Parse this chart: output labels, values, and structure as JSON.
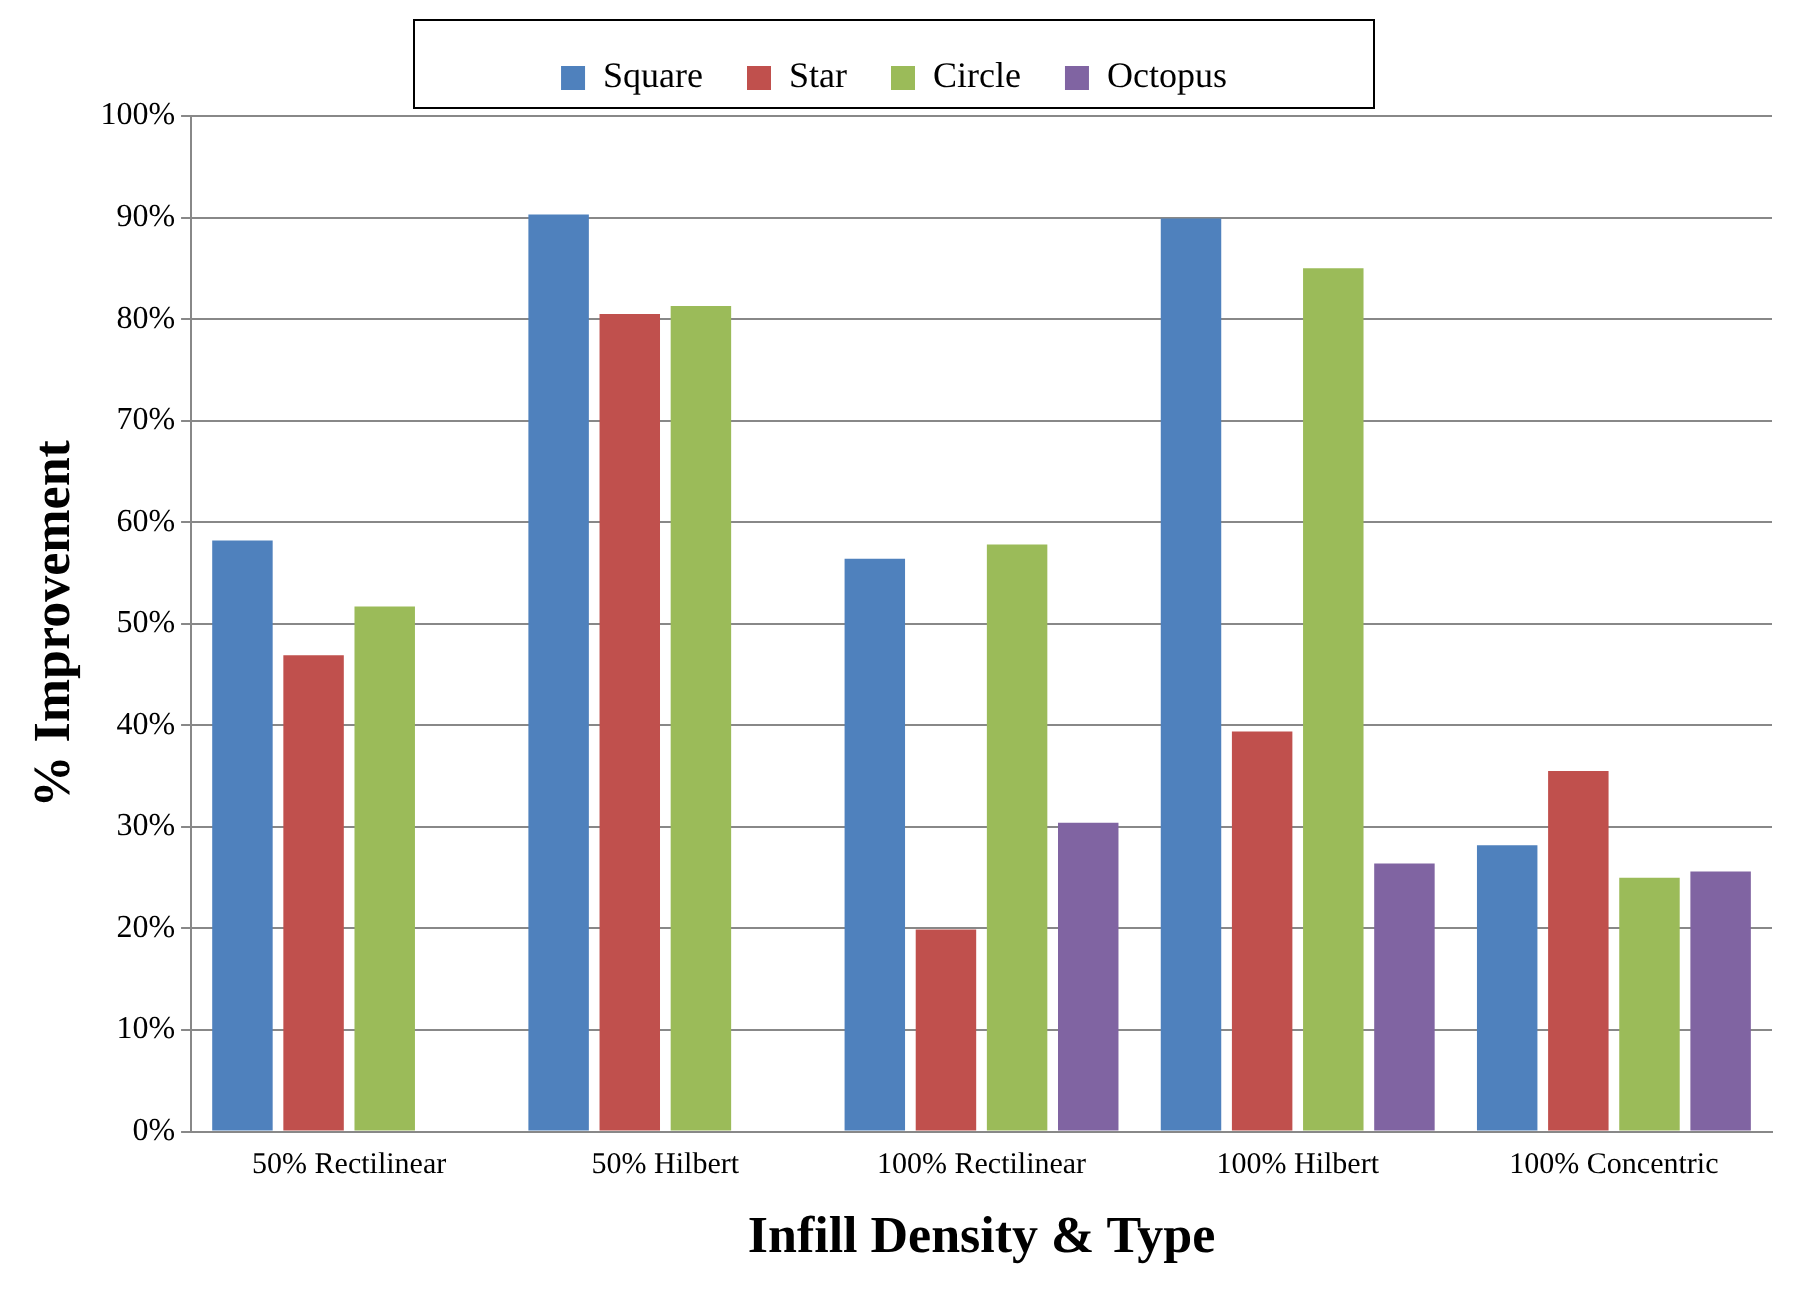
{
  "chart_data": {
    "type": "bar",
    "xlabel": "Infill Density & Type",
    "ylabel": "% Improvement",
    "categories": [
      "50% Rectilinear",
      "50% Hilbert",
      "100% Rectilinear",
      "100% Hilbert",
      "100% Concentric"
    ],
    "series": [
      {
        "name": "Square",
        "color": "#4f81bd",
        "values": [
          58.2,
          90.3,
          56.4,
          89.9,
          28.2
        ]
      },
      {
        "name": "Star",
        "color": "#c0504d",
        "values": [
          46.9,
          80.5,
          19.9,
          39.4,
          35.5
        ]
      },
      {
        "name": "Circle",
        "color": "#9bbb59",
        "values": [
          51.7,
          81.3,
          57.8,
          85.0,
          25.0
        ]
      },
      {
        "name": "Octopus",
        "color": "#8064a2",
        "values": [
          null,
          null,
          30.4,
          26.4,
          25.6
        ]
      }
    ],
    "ylim": [
      0,
      100
    ],
    "yticks": [
      {
        "value": 0,
        "label": "0%"
      },
      {
        "value": 10,
        "label": "10%"
      },
      {
        "value": 20,
        "label": "20%"
      },
      {
        "value": 30,
        "label": "30%"
      },
      {
        "value": 40,
        "label": "40%"
      },
      {
        "value": 50,
        "label": "50%"
      },
      {
        "value": 60,
        "label": "60%"
      },
      {
        "value": 70,
        "label": "70%"
      },
      {
        "value": 80,
        "label": "80%"
      },
      {
        "value": 90,
        "label": "90%"
      },
      {
        "value": 100,
        "label": "100%"
      }
    ],
    "grid": "y",
    "legend": "top"
  }
}
